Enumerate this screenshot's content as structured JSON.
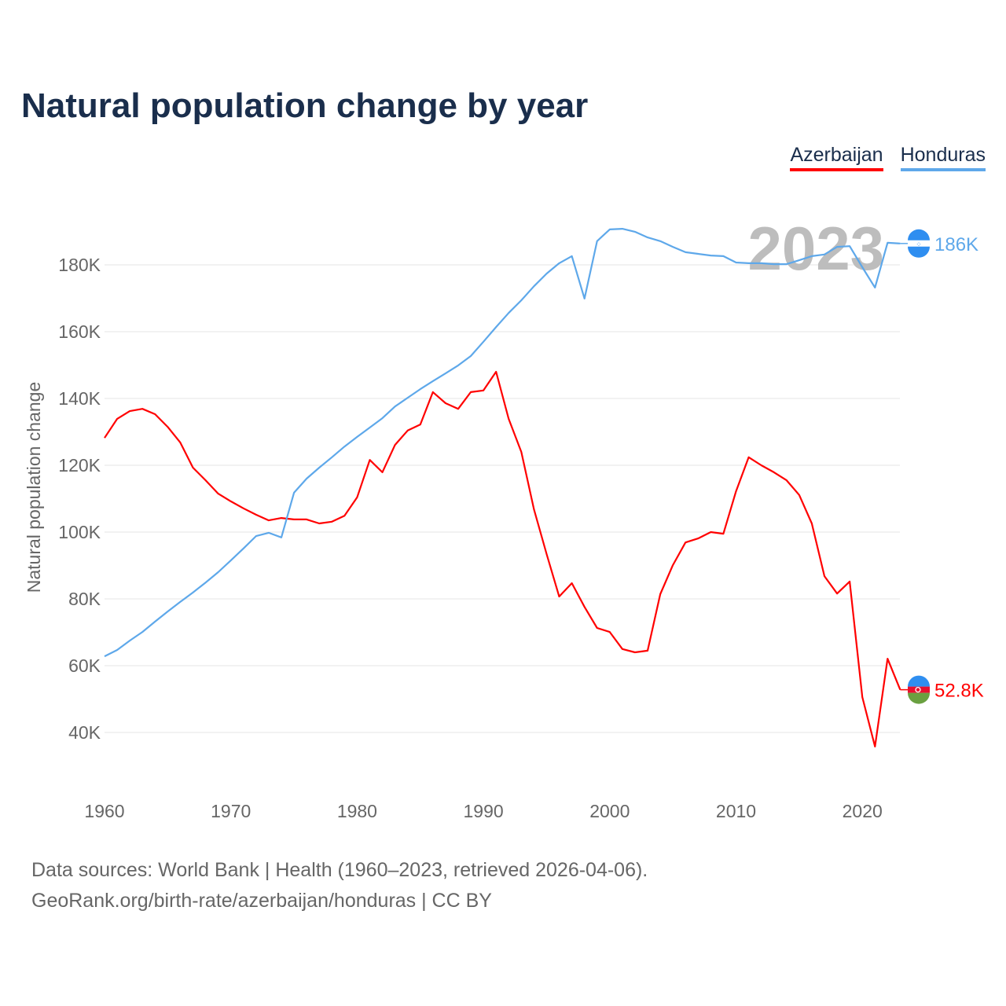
{
  "title": "Natural population change by year",
  "legend": [
    {
      "name": "Azerbaijan",
      "color": "#ff0000"
    },
    {
      "name": "Honduras",
      "color": "#5ea8ea"
    }
  ],
  "footer": {
    "line1": "Data sources: World Bank | Health (1960–2023, retrieved 2026-04-06).",
    "line2": "GeoRank.org/birth-rate/azerbaijan/honduras | CC BY"
  },
  "chart_data": {
    "type": "line",
    "ylabel": "Natural population change",
    "year_label": "2023",
    "xlim": [
      1960,
      2023
    ],
    "ylim": [
      25000,
      195000
    ],
    "xticks": [
      1960,
      1970,
      1980,
      1990,
      2000,
      2010,
      2020
    ],
    "yticks": [
      {
        "v": 40000,
        "label": "40K"
      },
      {
        "v": 60000,
        "label": "60K"
      },
      {
        "v": 80000,
        "label": "80K"
      },
      {
        "v": 100000,
        "label": "100K"
      },
      {
        "v": 120000,
        "label": "120K"
      },
      {
        "v": 140000,
        "label": "140K"
      },
      {
        "v": 160000,
        "label": "160K"
      },
      {
        "v": 180000,
        "label": "180K"
      }
    ],
    "x_start": 1960,
    "series": [
      {
        "name": "Azerbaijan",
        "color": "#ff0000",
        "end_label": "52.8K",
        "values": [
          128.2,
          133.9,
          136.2,
          136.9,
          135.3,
          131.5,
          126.8,
          119.3,
          115.5,
          111.5,
          109.2,
          107.1,
          105.2,
          103.5,
          104.2,
          103.8,
          103.8,
          102.6,
          103.1,
          104.9,
          110.4,
          121.6,
          117.9,
          126.1,
          130.4,
          132.2,
          141.9,
          138.6,
          136.9,
          141.9,
          142.4,
          148.0,
          133.9,
          124.0,
          106.8,
          93.4,
          80.7,
          84.7,
          77.6,
          71.3,
          70.1,
          65.0,
          64.0,
          64.5,
          81.4,
          90.1,
          96.9,
          98.1,
          100.0,
          99.5,
          112.2,
          122.4,
          120.0,
          117.9,
          115.5,
          111.1,
          102.6,
          86.8,
          81.6,
          85.2,
          50.6,
          35.8,
          62.1,
          52.8
        ]
      },
      {
        "name": "Honduras",
        "color": "#5ea8ea",
        "end_label": "186K",
        "values": [
          62.8,
          64.7,
          67.5,
          70.1,
          73.2,
          76.2,
          79.1,
          81.9,
          84.9,
          88.0,
          91.5,
          95.1,
          98.8,
          99.8,
          98.4,
          111.8,
          116.0,
          119.3,
          122.4,
          125.6,
          128.5,
          131.3,
          134.1,
          137.6,
          140.2,
          142.8,
          145.2,
          147.5,
          149.9,
          152.7,
          157.0,
          161.4,
          165.6,
          169.4,
          173.6,
          177.4,
          180.5,
          182.6,
          169.9,
          187.1,
          190.6,
          190.8,
          189.9,
          188.2,
          187.1,
          185.4,
          183.8,
          183.3,
          182.8,
          182.6,
          180.7,
          180.5,
          180.5,
          180.2,
          180.2,
          181.4,
          182.6,
          183.1,
          185.4,
          185.6,
          179.3,
          173.2,
          186.6,
          186.4
        ]
      }
    ],
    "value_unit": "thousands"
  }
}
